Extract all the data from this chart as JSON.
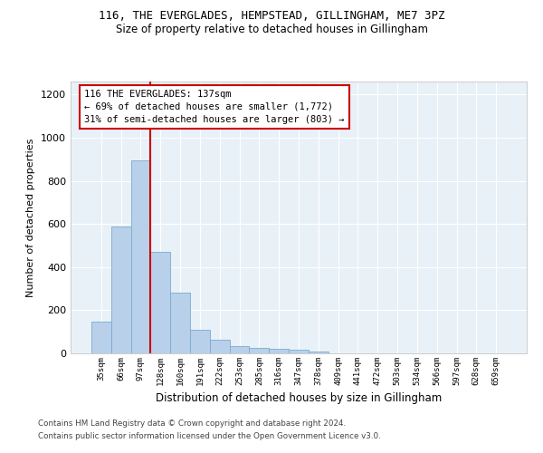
{
  "title1": "116, THE EVERGLADES, HEMPSTEAD, GILLINGHAM, ME7 3PZ",
  "title2": "Size of property relative to detached houses in Gillingham",
  "xlabel": "Distribution of detached houses by size in Gillingham",
  "ylabel": "Number of detached properties",
  "footer1": "Contains HM Land Registry data © Crown copyright and database right 2024.",
  "footer2": "Contains public sector information licensed under the Open Government Licence v3.0.",
  "bar_color": "#b8d0ea",
  "bar_edge_color": "#7aabcf",
  "bg_color": "#e8f1f8",
  "annotation_line1": "116 THE EVERGLADES: 137sqm",
  "annotation_line2": "← 69% of detached houses are smaller (1,772)",
  "annotation_line3": "31% of semi-detached houses are larger (803) →",
  "vline_color": "#cc0000",
  "annotation_box_edgecolor": "#cc0000",
  "categories": [
    "35sqm",
    "66sqm",
    "97sqm",
    "128sqm",
    "160sqm",
    "191sqm",
    "222sqm",
    "253sqm",
    "285sqm",
    "316sqm",
    "347sqm",
    "378sqm",
    "409sqm",
    "441sqm",
    "472sqm",
    "503sqm",
    "534sqm",
    "566sqm",
    "597sqm",
    "628sqm",
    "659sqm"
  ],
  "values": [
    145,
    590,
    893,
    470,
    280,
    110,
    65,
    35,
    25,
    22,
    18,
    10,
    0,
    0,
    0,
    0,
    0,
    0,
    0,
    0,
    0
  ],
  "vline_after_index": 2,
  "ylim": [
    0,
    1260
  ],
  "yticks": [
    0,
    200,
    400,
    600,
    800,
    1000,
    1200
  ]
}
